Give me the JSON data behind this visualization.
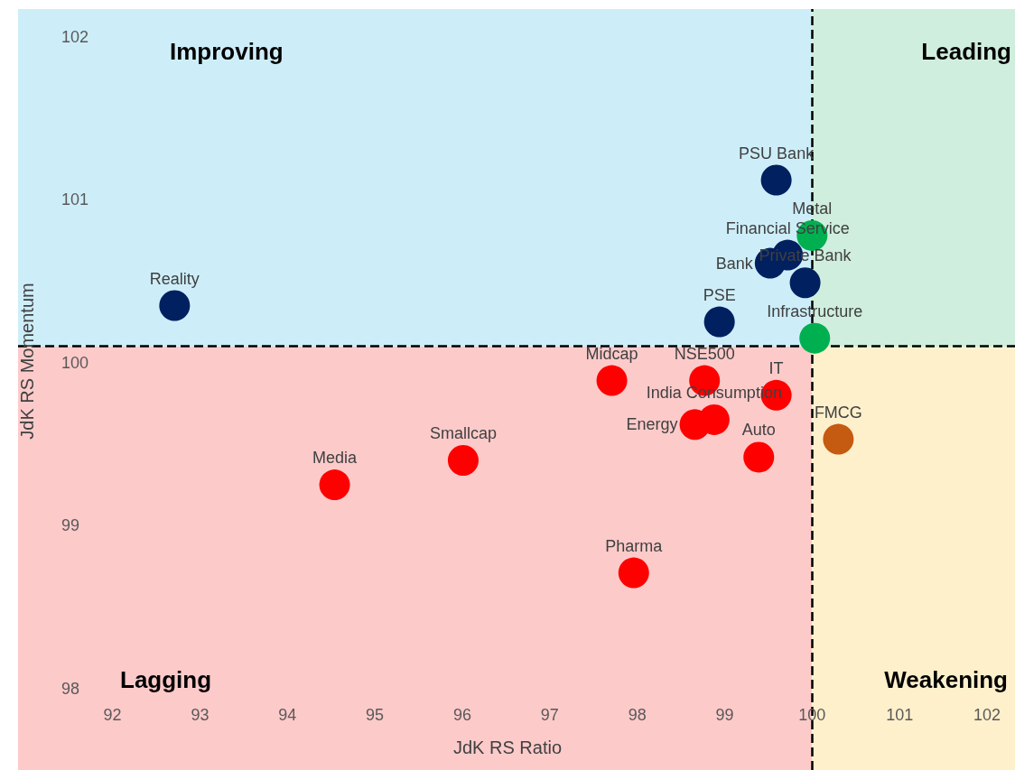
{
  "chart_data": {
    "type": "scatter",
    "xlabel": "JdK RS Ratio",
    "ylabel": "JdK RS Momentum",
    "xlim": [
      90.92,
      102.32
    ],
    "xticks": [
      92,
      93,
      94,
      95,
      96,
      97,
      98,
      99,
      100,
      101,
      102
    ],
    "ylim": [
      97.5,
      102.17
    ],
    "yticks": [
      98,
      99,
      100,
      101,
      102
    ],
    "grid": false,
    "marker": "circle",
    "ref_lines": [
      {
        "axis": "x",
        "value": 100,
        "line_style": "dashed",
        "color": "#000000"
      },
      {
        "axis": "y",
        "value": 100.1,
        "line_style": "dashed",
        "color": "#000000"
      }
    ],
    "annotations": [
      "Improving",
      "Leading",
      "Lagging",
      "Weakening"
    ],
    "series": [
      {
        "color": "#002060",
        "x": [
          92.71,
          99.59,
          99.72,
          99.52,
          99.92,
          98.94
        ],
        "values": [
          100.35,
          101.12,
          100.66,
          100.61,
          100.49,
          100.25
        ],
        "value_labels": [
          "Reality",
          "PSU Bank",
          "Financial Service",
          "Bank",
          "Private Bank",
          "PSE"
        ]
      },
      {
        "color": "#00b050",
        "x": [
          100.0,
          100.03
        ],
        "values": [
          100.78,
          100.15
        ],
        "value_labels": [
          "Metal",
          "Infrastructure"
        ]
      },
      {
        "color": "#c55a11",
        "x": [
          100.3
        ],
        "values": [
          99.53
        ],
        "value_labels": [
          "FMCG"
        ]
      },
      {
        "color": "#ff0000",
        "x": [
          97.71,
          98.77,
          99.59,
          98.88,
          98.66,
          99.39,
          96.01,
          94.54,
          97.96
        ],
        "values": [
          99.89,
          99.89,
          99.8,
          99.65,
          99.62,
          99.42,
          99.4,
          99.25,
          98.71
        ],
        "value_labels": [
          "Midcap",
          "NSE500",
          "IT",
          "India Consumption",
          "Energy",
          "Auto",
          "Smallcap",
          "Media",
          "Pharma"
        ]
      }
    ]
  }
}
